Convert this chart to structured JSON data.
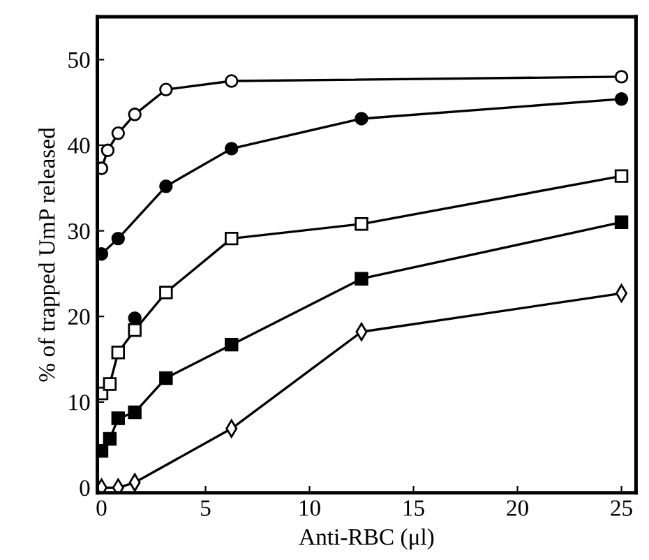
{
  "chart_data": {
    "type": "line",
    "xlabel": "Anti-RBC (μl)",
    "ylabel": "% of trapped UmP released",
    "xlim": [
      -0.2,
      25.7
    ],
    "ylim": [
      -0.6,
      55
    ],
    "xticks": [
      0,
      5,
      10,
      15,
      20,
      25
    ],
    "yticks": [
      0,
      10,
      20,
      30,
      40,
      50
    ],
    "grid": false,
    "series": [
      {
        "x": [
          0,
          0.3,
          0.8,
          1.6,
          3.1,
          6.25,
          25
        ],
        "values": [
          37.3,
          39.4,
          41.4,
          43.6,
          46.5,
          47.5,
          48
        ],
        "color": "#ffffff",
        "marker": "circle"
      },
      {
        "x": [
          0,
          0.8,
          3.1,
          6.25,
          12.5,
          25
        ],
        "values": [
          27.3,
          29.1,
          35.2,
          39.6,
          43.1,
          45.4
        ],
        "color": "#000000",
        "marker": "circle"
      },
      {
        "type": "scatter",
        "x": [
          1.6
        ],
        "values": [
          19.8
        ],
        "color": "#000000",
        "marker": "circle"
      },
      {
        "x": [
          0,
          0.4,
          0.8,
          1.6,
          3.1,
          6.25,
          12.5,
          25
        ],
        "values": [
          11.0,
          12.1,
          15.8,
          18.4,
          22.8,
          29.1,
          30.8,
          36.4
        ],
        "color": "#ffffff",
        "marker": "square"
      },
      {
        "x": [
          0,
          0.4,
          0.8,
          1.6,
          3.1,
          6.25,
          12.5,
          25
        ],
        "values": [
          4.3,
          5.7,
          8.1,
          8.8,
          12.8,
          16.7,
          24.4,
          31.0
        ],
        "color": "#000000",
        "marker": "square"
      },
      {
        "x": [
          0,
          0.8,
          1.6,
          6.25,
          12.5,
          25
        ],
        "values": [
          0,
          0,
          0.6,
          6.9,
          18.2,
          22.7
        ],
        "color": "#ffffff",
        "marker": "diamond"
      }
    ]
  }
}
